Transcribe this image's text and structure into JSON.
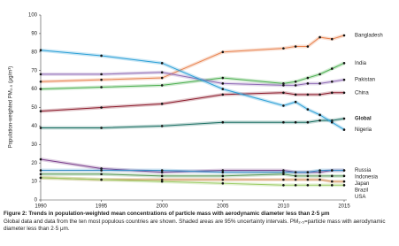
{
  "chart_data": {
    "type": "line",
    "ylabel": "Population-weighted PM₂.₅ (μg/m³)",
    "x": [
      1990,
      1995,
      2000,
      2005,
      2010,
      2011,
      2012,
      2013,
      2014,
      2015
    ],
    "xlim": [
      1990,
      2015
    ],
    "xticks": [
      1990,
      1995,
      2000,
      2005,
      2010,
      2015
    ],
    "ylim": [
      0,
      100
    ],
    "yticks": [
      0,
      10,
      20,
      30,
      40,
      50,
      60,
      70,
      80,
      90,
      100
    ],
    "series": [
      {
        "name": "Bangladesh",
        "color": "#e8824f",
        "values": [
          64,
          65,
          66,
          80,
          82,
          83,
          83,
          88,
          87,
          89
        ]
      },
      {
        "name": "India",
        "color": "#4caf50",
        "values": [
          60,
          61,
          62,
          66,
          63,
          64,
          66,
          68,
          71,
          74
        ]
      },
      {
        "name": "Pakistan",
        "color": "#8e6bb5",
        "values": [
          68,
          68,
          69,
          63,
          62,
          62,
          63,
          63,
          64,
          65
        ]
      },
      {
        "name": "China",
        "color": "#8b1a2b",
        "values": [
          48,
          50,
          52,
          57,
          58,
          57,
          57,
          57,
          58,
          58
        ]
      },
      {
        "name": "Global",
        "color": "#1a6e62",
        "bold": true,
        "values": [
          39,
          39,
          40,
          42,
          42,
          42,
          42,
          43,
          43,
          44
        ]
      },
      {
        "name": "Nigeria",
        "color": "#2a9fd6",
        "values": [
          81,
          78,
          74,
          60,
          51,
          53,
          49,
          46,
          42,
          38
        ]
      },
      {
        "name": "Russia",
        "color": "#7b3f8c",
        "values": [
          22,
          17,
          15,
          16,
          16,
          15,
          15,
          15,
          16,
          16
        ]
      },
      {
        "name": "Indonesia",
        "color": "#3a8fc8",
        "values": [
          16,
          16,
          16,
          15,
          15,
          15,
          15,
          16,
          16,
          16
        ]
      },
      {
        "name": "Japan",
        "color": "#5a9a5a",
        "values": [
          14,
          14,
          13,
          13,
          14,
          13,
          13,
          13,
          13,
          13
        ]
      },
      {
        "name": "Brazil",
        "color": "#d08a50",
        "values": [
          12,
          11,
          11,
          11,
          11,
          11,
          11,
          11,
          10,
          10
        ]
      },
      {
        "name": "USA",
        "color": "#9ccc65",
        "values": [
          12,
          11,
          10,
          9,
          8,
          8,
          8,
          8,
          8,
          8
        ]
      }
    ]
  },
  "caption": {
    "title": "Figure 2: Trends in population-weighted mean concentrations of particle mass with aerodynamic diameter less than 2·5 μm",
    "text": "Global data and data from the ten most populous countries are shown. Shaded areas are 95% uncertainty intervals. PM₂.₅=particle mass with aerodynamic diameter less than 2·5 μm."
  }
}
